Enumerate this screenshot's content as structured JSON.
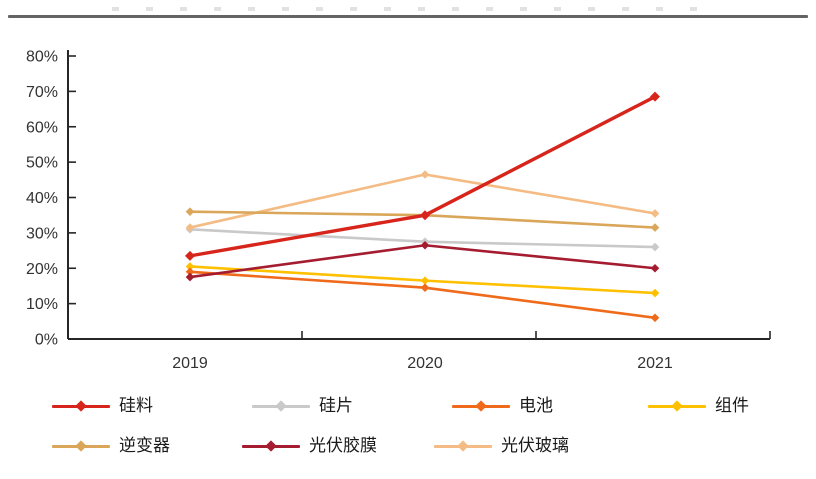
{
  "chart_data": {
    "type": "line",
    "categories": [
      "2019",
      "2020",
      "2021"
    ],
    "series": [
      {
        "name": "硅料",
        "color": "#d7251c",
        "values": [
          23.5,
          35.0,
          68.5
        ]
      },
      {
        "name": "硅片",
        "color": "#c9c9c9",
        "values": [
          31.0,
          27.5,
          26.0
        ]
      },
      {
        "name": "电池",
        "color": "#ef6a1a",
        "values": [
          19.0,
          14.5,
          6.0
        ]
      },
      {
        "name": "组件",
        "color": "#ffc000",
        "values": [
          20.5,
          16.5,
          13.0
        ]
      },
      {
        "name": "逆变器",
        "color": "#d9a65a",
        "values": [
          36.0,
          35.0,
          31.5
        ]
      },
      {
        "name": "光伏胶膜",
        "color": "#a51c30",
        "values": [
          17.5,
          26.5,
          20.0
        ]
      },
      {
        "name": "光伏玻璃",
        "color": "#f4bc84",
        "values": [
          31.5,
          46.5,
          35.5
        ]
      }
    ],
    "title": "",
    "xlabel": "",
    "ylabel": "",
    "ylim": [
      0,
      80
    ],
    "ytick_step": 10,
    "ytick_labels": [
      "0%",
      "10%",
      "20%",
      "30%",
      "40%",
      "50%",
      "60%",
      "70%",
      "80%"
    ],
    "grid": false,
    "legend_position": "bottom",
    "legend_rows": [
      [
        0,
        1,
        2,
        3
      ],
      [
        4,
        5,
        6
      ]
    ],
    "draw_order": [
      1,
      6,
      4,
      3,
      2,
      5,
      0
    ],
    "axis_color": "#262626",
    "tick_label_color": "#333333"
  }
}
